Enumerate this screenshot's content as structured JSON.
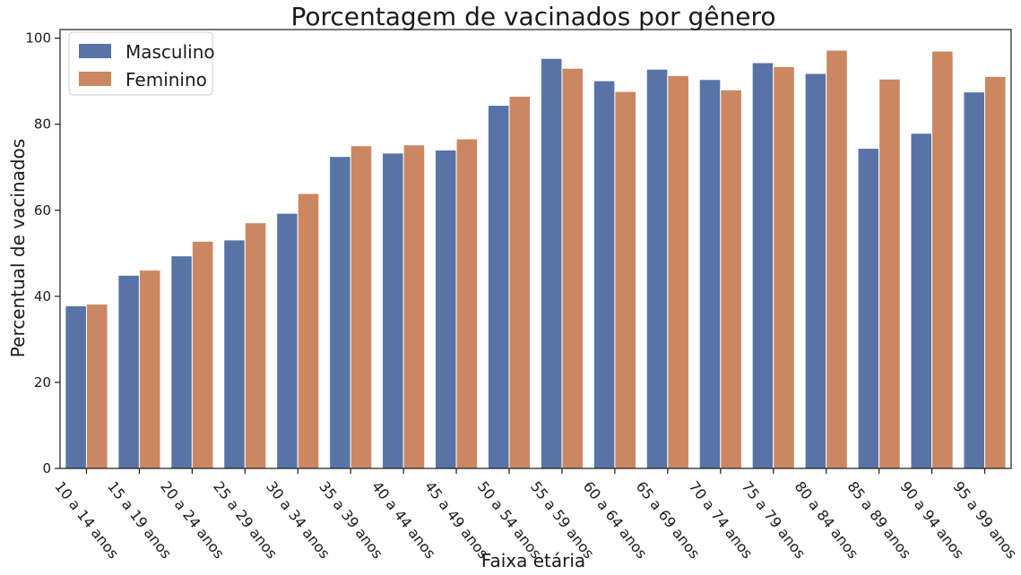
{
  "chart_data": {
    "type": "bar",
    "title": "Porcentagem de vacinados por gênero",
    "xlabel": "Faixa etária",
    "ylabel": "Percentual de vacinados",
    "ylim": [
      0,
      102
    ],
    "yticks": [
      0,
      20,
      40,
      60,
      80,
      100
    ],
    "grid": false,
    "legend_position": "top-left",
    "categories": [
      "10 a 14 anos",
      "15 a 19 anos",
      "20 a 24 anos",
      "25 a 29 anos",
      "30 a 34 anos",
      "35 a 39 anos",
      "40 a 44 anos",
      "45 a 49 anos",
      "50 a 54 anos",
      "55 a 59 anos",
      "60 a 64 anos",
      "65 a 69 anos",
      "70 a 74 anos",
      "75 a 79 anos",
      "80 a 84 anos",
      "85 a 89 anos",
      "90 a 94 anos",
      "95 a 99 anos"
    ],
    "series": [
      {
        "name": "Masculino",
        "color": "#5874a6",
        "values": [
          37.8,
          44.9,
          49.4,
          53.1,
          59.3,
          72.5,
          73.3,
          74.0,
          84.4,
          95.3,
          90.1,
          92.8,
          90.4,
          94.3,
          91.8,
          74.4,
          77.9,
          87.5
        ]
      },
      {
        "name": "Feminino",
        "color": "#cb8761",
        "values": [
          38.2,
          46.1,
          52.8,
          57.1,
          63.9,
          75.0,
          75.2,
          76.6,
          86.5,
          93.0,
          87.6,
          91.3,
          88.0,
          93.4,
          97.2,
          90.5,
          97.0,
          91.1
        ]
      }
    ]
  }
}
